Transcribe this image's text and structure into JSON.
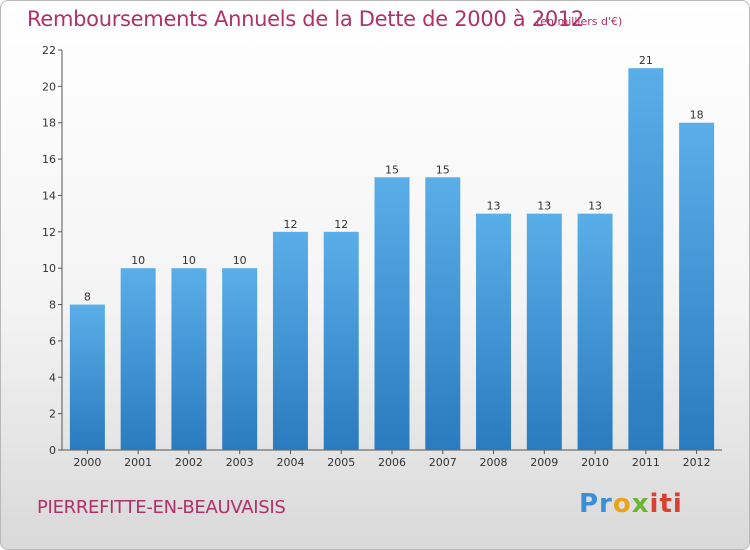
{
  "title": "Remboursements Annuels de la Dette de 2000 à 2012",
  "subtitle": "(en milliers d'€)",
  "city": "PIERREFITTE-EN-BEAUVAISIS",
  "logo": {
    "p1": "Pr",
    "p2": "o",
    "p3": "x",
    "p4": "iti"
  },
  "colors": {
    "bar_top": "#5aaee8",
    "bar_bottom": "#2a7bbf",
    "title": "#b0306a"
  },
  "chart_data": {
    "type": "bar",
    "title": "Remboursements Annuels de la Dette de 2000 à 2012",
    "categories": [
      "2000",
      "2001",
      "2002",
      "2003",
      "2004",
      "2005",
      "2006",
      "2007",
      "2008",
      "2009",
      "2010",
      "2011",
      "2012"
    ],
    "values": [
      8,
      10,
      10,
      10,
      12,
      12,
      15,
      15,
      13,
      13,
      13,
      21,
      18
    ],
    "ylim": [
      0,
      22
    ],
    "yticks": [
      0,
      2,
      4,
      6,
      8,
      10,
      12,
      14,
      16,
      18,
      20,
      22
    ],
    "grid": false,
    "xlabel": "",
    "ylabel": ""
  }
}
